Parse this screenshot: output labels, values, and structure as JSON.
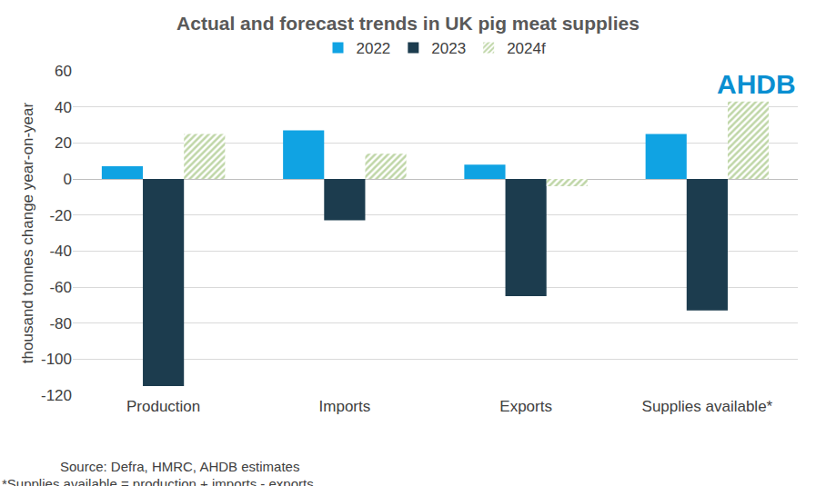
{
  "chart_data": {
    "type": "bar",
    "title": "Actual and forecast trends in UK pig meat supplies",
    "y_label": "thousand tonnes change year-on-year",
    "categories": [
      "Production",
      "Imports",
      "Exports",
      "Supplies available*"
    ],
    "series": [
      {
        "name": "2022",
        "color": "#10a3e3",
        "values": [
          7,
          27,
          8,
          25
        ]
      },
      {
        "name": "2023",
        "color": "#1c3c4e",
        "values": [
          -115,
          -23,
          -65,
          -73
        ]
      },
      {
        "name": "2024f",
        "color": "#7fad4f",
        "marker": "hatched",
        "values": [
          25,
          14,
          -4,
          43
        ]
      }
    ],
    "ylim": [
      -120,
      60
    ],
    "yticks": [
      -120,
      -100,
      -80,
      -60,
      -40,
      -20,
      0,
      20,
      40,
      60
    ],
    "grid": true,
    "legend": "top",
    "source": "Source: Defra, HMRC, AHDB estimates",
    "footnote": "*Supplies available = production + imports - exports",
    "logo": "AHDB"
  }
}
